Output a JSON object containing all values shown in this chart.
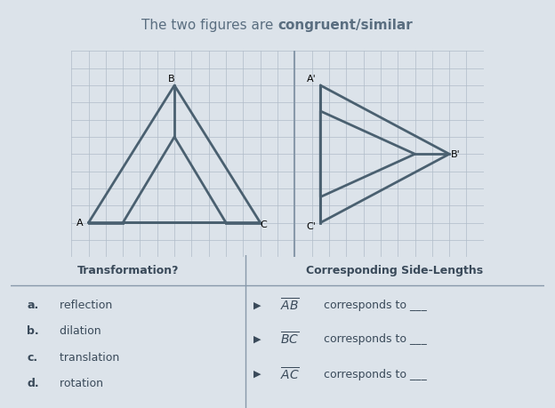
{
  "title_normal": "The two figures are ",
  "title_bold": "congruent/similar",
  "bg_color": "#e8ecf0",
  "grid_color": "#b0bcc8",
  "figure_color": "#4a6070",
  "border_color": "#8899aa",
  "col_header_left": "Transformation?",
  "col_header_right": "Corresponding Side-Lengths",
  "items_left": [
    "a. reflection",
    "b. dilation",
    "c. translation",
    "d. rotation"
  ],
  "items_right_label": [
    "AB",
    "BC",
    "AC"
  ],
  "title_color": "#5a6e80",
  "text_color": "#3a4a5a"
}
